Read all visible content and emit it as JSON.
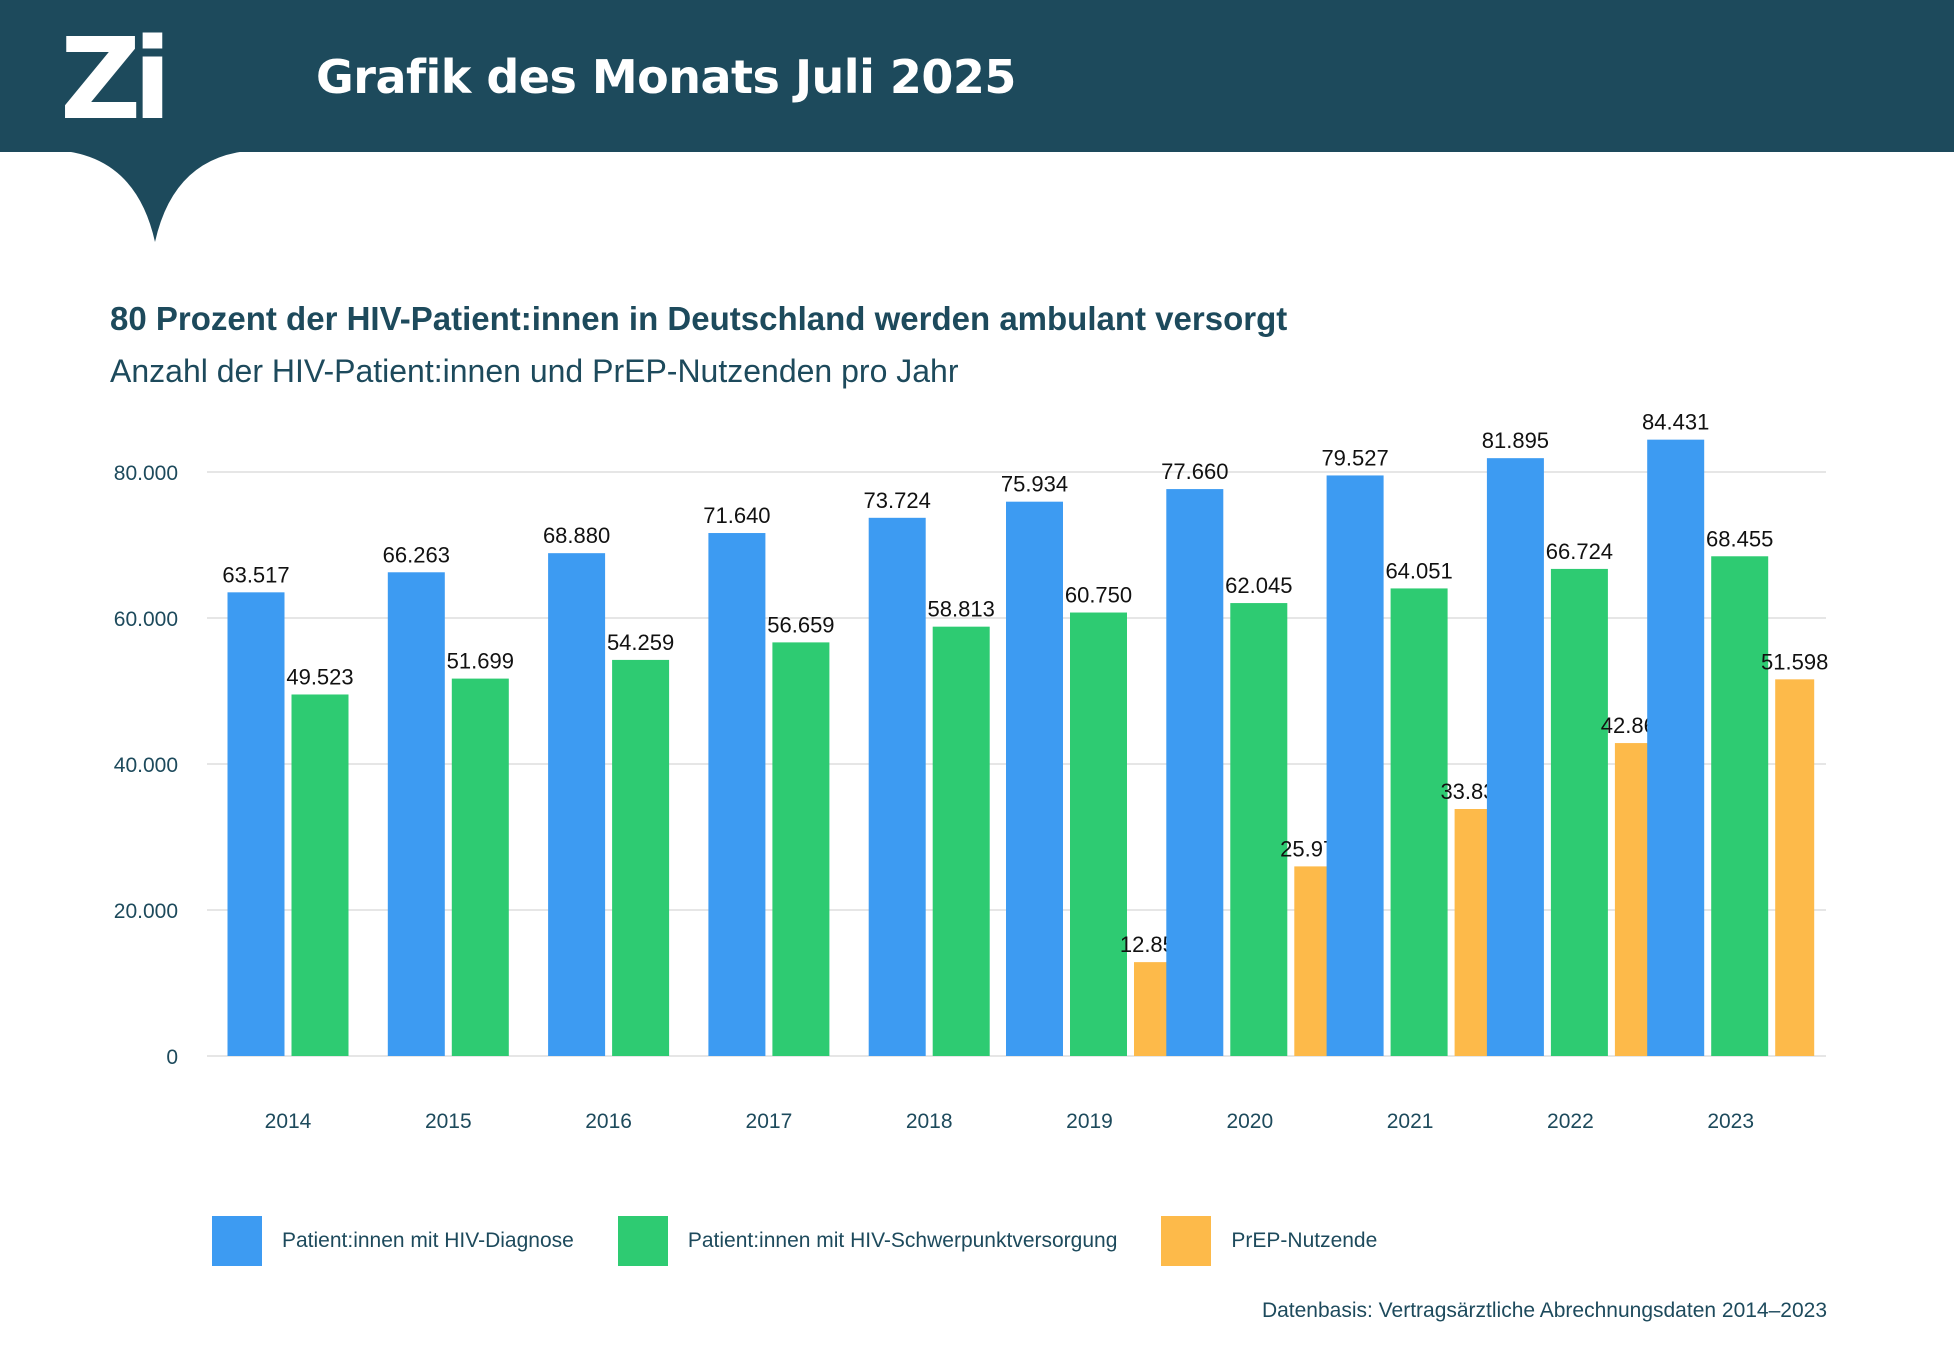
{
  "header": {
    "logo": "Zi",
    "title": "Grafik des Monats Juli 2025"
  },
  "colors": {
    "header_bg": "#1d4a5c",
    "blue": "#3d9bf2",
    "green": "#2ecb72",
    "orange": "#fdba4a",
    "text": "#1d4a5c"
  },
  "source": "Datenbasis: Vertragsärztliche Abrechnungsdaten 2014–2023",
  "chart_data": {
    "type": "bar",
    "title": "80 Prozent der HIV-Patient:innen in Deutschland werden ambulant versorgt",
    "subtitle": "Anzahl der HIV-Patient:innen und PrEP-Nutzenden pro Jahr",
    "categories": [
      "2014",
      "2015",
      "2016",
      "2017",
      "2018",
      "2019",
      "2020",
      "2021",
      "2022",
      "2023"
    ],
    "ylim": [
      0,
      80000
    ],
    "yticks": [
      0,
      20000,
      40000,
      60000,
      80000
    ],
    "ytick_labels": [
      "0",
      "20.000",
      "40.000",
      "60.000",
      "80.000"
    ],
    "grid": true,
    "legend_position": "bottom",
    "series": [
      {
        "name": "Patient:innen mit HIV-Diagnose",
        "color": "#3d9bf2",
        "values": [
          63517,
          66263,
          68880,
          71640,
          73724,
          75934,
          77660,
          79527,
          81895,
          84431
        ],
        "labels": [
          "63.517",
          "66.263",
          "68.880",
          "71.640",
          "73.724",
          "75.934",
          "77.660",
          "79.527",
          "81.895",
          "84.431"
        ]
      },
      {
        "name": "Patient:innen mit HIV-Schwerpunktversorgung",
        "color": "#2ecb72",
        "values": [
          49523,
          51699,
          54259,
          56659,
          58813,
          60750,
          62045,
          64051,
          66724,
          68455
        ],
        "labels": [
          "49.523",
          "51.699",
          "54.259",
          "56.659",
          "58.813",
          "60.750",
          "62.045",
          "64.051",
          "66.724",
          "68.455"
        ]
      },
      {
        "name": "PrEP-Nutzende",
        "color": "#fdba4a",
        "values": [
          null,
          null,
          null,
          null,
          null,
          12859,
          25974,
          33835,
          42867,
          51598
        ],
        "labels": [
          null,
          null,
          null,
          null,
          null,
          "12.859",
          "25.974",
          "33.835",
          "42.867",
          "51.598"
        ]
      }
    ]
  }
}
